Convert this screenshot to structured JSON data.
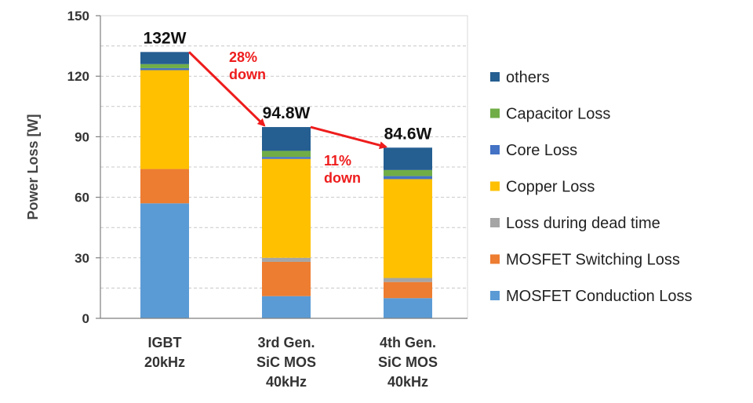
{
  "chart_data": {
    "type": "bar",
    "stacked": true,
    "ylabel": "Power Loss  [W]",
    "ylim": [
      0,
      150
    ],
    "yticks": [
      "0",
      "30",
      "60",
      "90",
      "120",
      "150"
    ],
    "grid": true,
    "legend_position": "right",
    "categories": [
      {
        "lines": [
          "IGBT",
          "20kHz"
        ]
      },
      {
        "lines": [
          "3rd Gen.",
          "SiC MOS",
          "40kHz"
        ]
      },
      {
        "lines": [
          "4th Gen.",
          "SiC MOS",
          "40kHz"
        ]
      }
    ],
    "series": [
      {
        "name": "MOSFET Conduction Loss",
        "color": "#5b9bd5",
        "values": [
          57,
          11,
          10
        ]
      },
      {
        "name": "MOSFET Switching Loss",
        "color": "#ed7d31",
        "values": [
          17,
          17,
          8
        ]
      },
      {
        "name": "Loss during dead time",
        "color": "#a5a5a5",
        "values": [
          0,
          2,
          2
        ]
      },
      {
        "name": "Copper Loss",
        "color": "#ffc000",
        "values": [
          49,
          49,
          49
        ]
      },
      {
        "name": "Core Loss",
        "color": "#4472c4",
        "values": [
          1,
          1,
          1.5
        ]
      },
      {
        "name": "Capacitor Loss",
        "color": "#70ad47",
        "values": [
          2,
          3,
          3
        ]
      },
      {
        "name": "others",
        "color": "#255e91",
        "values": [
          6,
          11.8,
          11.1
        ]
      }
    ],
    "totals": [
      "132W",
      "94.8W",
      "84.6W"
    ],
    "annotations": [
      {
        "lines": [
          "28%",
          "down"
        ]
      },
      {
        "lines": [
          "11%",
          "down"
        ]
      }
    ],
    "annotation_color": "#ee1c1c"
  }
}
